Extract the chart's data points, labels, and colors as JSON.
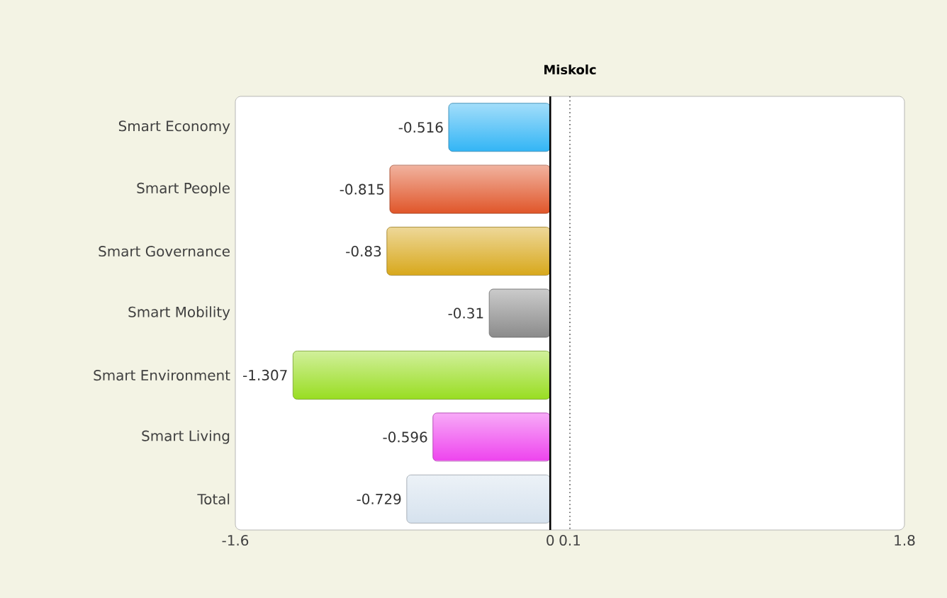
{
  "chart_data": {
    "type": "bar",
    "orientation": "horizontal",
    "title": "Miskolc",
    "categories": [
      "Smart Economy",
      "Smart People",
      "Smart Governance",
      "Smart Mobility",
      "Smart Environment",
      "Smart Living",
      "Total"
    ],
    "values": [
      -0.516,
      -0.815,
      -0.83,
      -0.31,
      -1.307,
      -0.596,
      -0.729
    ],
    "colors": [
      "#33b5f5",
      "#e0562a",
      "#d8a81c",
      "#8c8c8c",
      "#99dd22",
      "#ee44ee",
      "#d6e2ee"
    ],
    "data_labels": true,
    "xlim": [
      -1.6,
      1.8
    ],
    "xticks": [
      -1.6,
      0,
      0.1,
      1.8
    ],
    "ref_lines": [
      {
        "axis": "x",
        "value": 0,
        "color": "#000000",
        "line_style": "solid"
      },
      {
        "axis": "x",
        "value": 0.1,
        "color": "#555555",
        "line_style": "dotted"
      }
    ],
    "grid": false
  }
}
